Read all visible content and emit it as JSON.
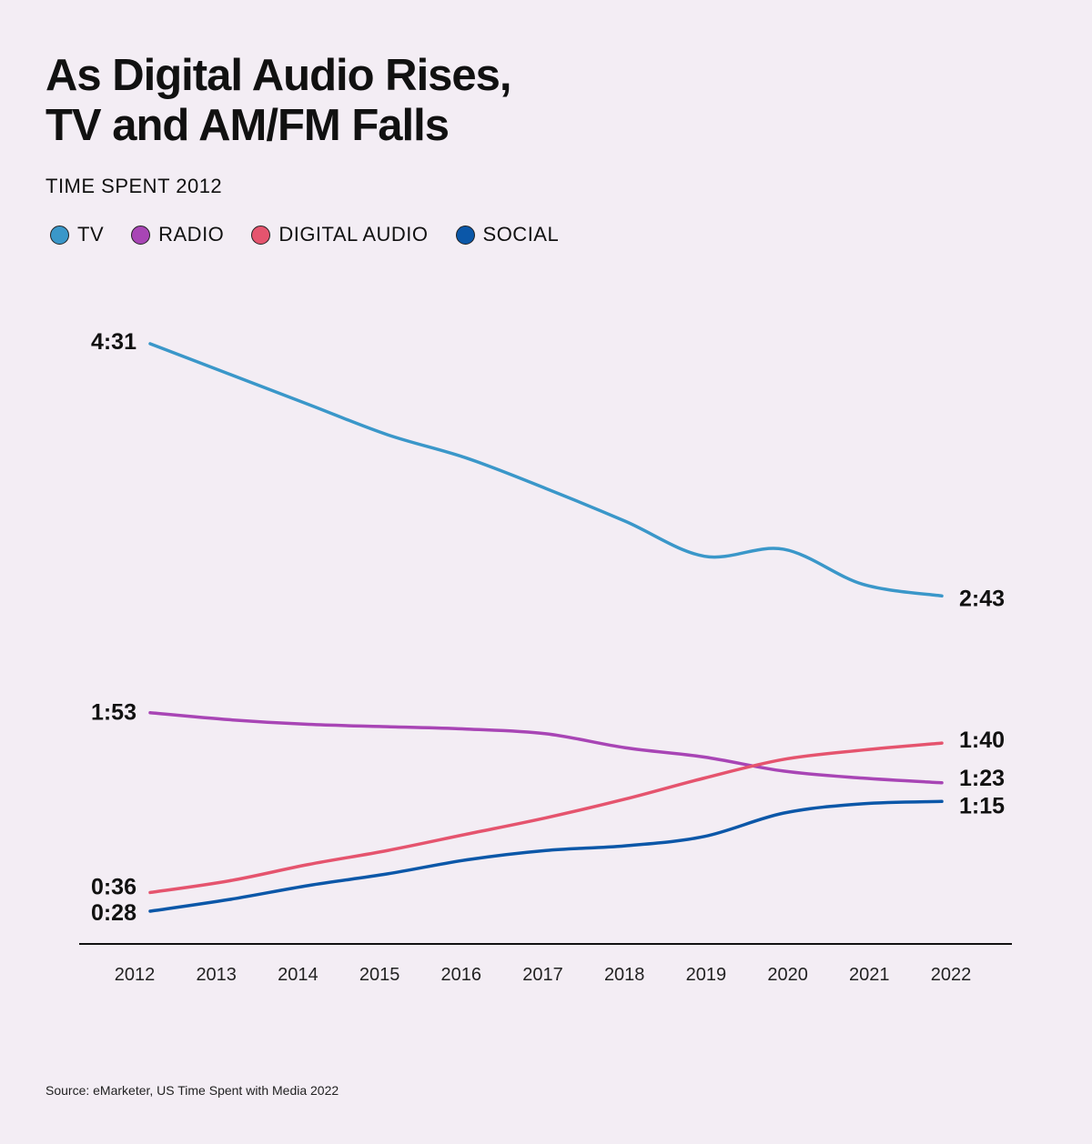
{
  "title_lines": [
    "As Digital Audio Rises,",
    "TV and AM/FM Falls"
  ],
  "subtitle": "TIME SPENT 2012",
  "source": "Source: eMarketer, US Time Spent with Media 2022",
  "chart_data": {
    "type": "line",
    "title": "As Digital Audio Rises, TV and AM/FM Falls",
    "subtitle": "TIME SPENT 2012",
    "unit": "minutes per day",
    "categories": [
      "2012",
      "2013",
      "2014",
      "2015",
      "2016",
      "2017",
      "2018",
      "2019",
      "2020",
      "2021",
      "2022"
    ],
    "legend_position": "top-left",
    "grid": false,
    "series": [
      {
        "name": "TV",
        "color": "#3a97c9",
        "values": [
          271,
          258,
          245,
          232,
          222,
          209,
          195,
          180,
          183,
          168,
          163
        ],
        "start_label": "4:31",
        "end_label": "2:43"
      },
      {
        "name": "RADIO",
        "color": "#a845b5",
        "values": [
          113,
          110,
          108,
          107,
          106,
          104,
          98,
          94,
          88,
          85,
          83
        ],
        "start_label": "1:53",
        "end_label": "1:23"
      },
      {
        "name": "DIGITAL AUDIO",
        "color": "#e5546e",
        "values": [
          36,
          41,
          48,
          54,
          61,
          68,
          76,
          85,
          93,
          97,
          100
        ],
        "start_label": "0:36",
        "end_label": "1:40"
      },
      {
        "name": "SOCIAL",
        "color": "#0b57a8",
        "values": [
          28,
          33,
          39,
          44,
          50,
          54,
          56,
          60,
          70,
          74,
          75
        ],
        "start_label": "0:28",
        "end_label": "1:15"
      }
    ]
  }
}
